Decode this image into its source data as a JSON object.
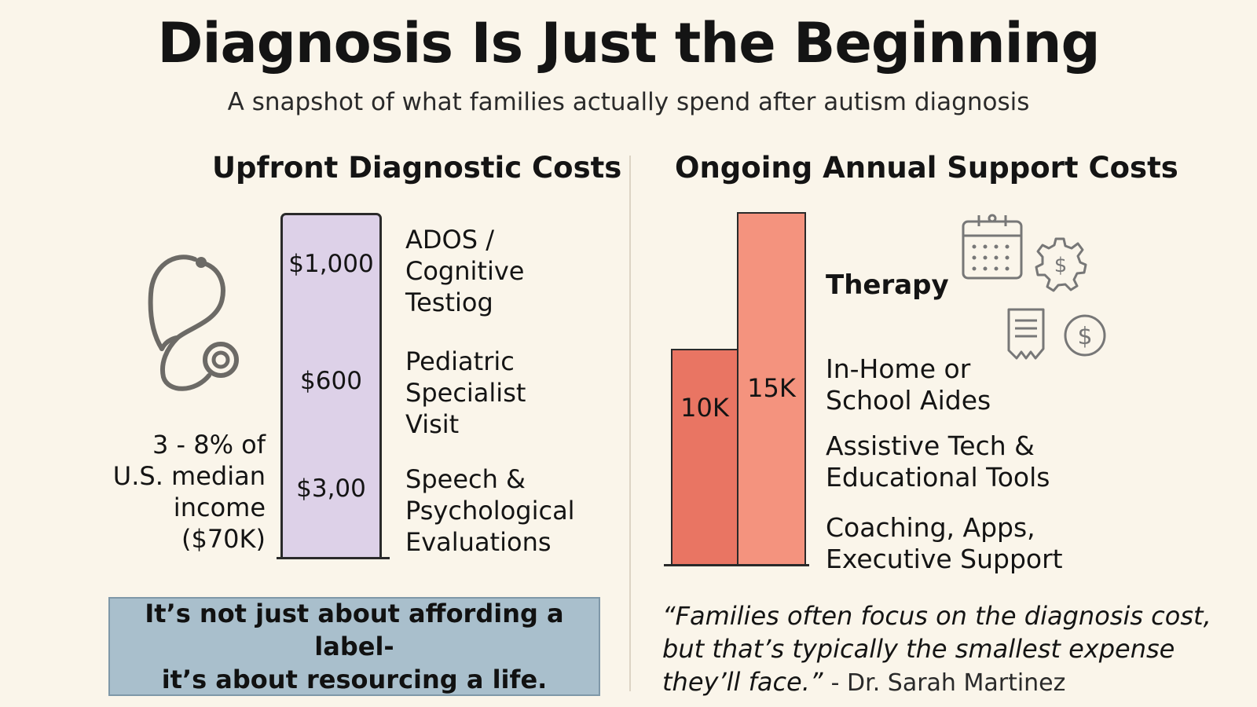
{
  "title": "Diagnosis Is Just the Beginning",
  "subtitle": "A snapshot of what families actually spend after autism diagnosis",
  "left": {
    "heading": "Upfront Diagnostic Costs",
    "bar_values": [
      "$1,000",
      "$600",
      "$3,00"
    ],
    "labels": [
      "ADOS /\nCognitive\nTestiog",
      "Pediatric\nSpecialist\nVisit",
      "Speech &\nPsychological\nEvaluations"
    ],
    "median_text": "3 - 8% of\nU.S. median\nincome\n($70K)",
    "callout": "It’s not just about affording a label-\nit’s about resourcing a life."
  },
  "right": {
    "heading": "Ongoing Annual Support Costs",
    "bars": [
      {
        "label": "10K",
        "value": 10
      },
      {
        "label": "15K",
        "value": 15
      }
    ],
    "therapy_label": "Therapy",
    "labels": [
      "In-Home or\nSchool Aides",
      "Assistive Tech &\nEducational Tools",
      "Coaching, Apps,\nExecutive Support"
    ],
    "quote": "“Families often focus on the diagnosis cost, but that’s typically the smallest expense they’ll face.”",
    "quote_attribution": "- Dr. Sarah Martinez"
  },
  "colors": {
    "background": "#faf5ea",
    "left_bar": "#ddd1e8",
    "bar_10k": "#e97563",
    "bar_15k": "#f4937e",
    "callout_box": "#a9bfcc"
  },
  "icons": [
    "stethoscope-icon",
    "calendar-icon",
    "gear-dollar-icon",
    "receipt-icon",
    "dollar-coin-icon"
  ]
}
